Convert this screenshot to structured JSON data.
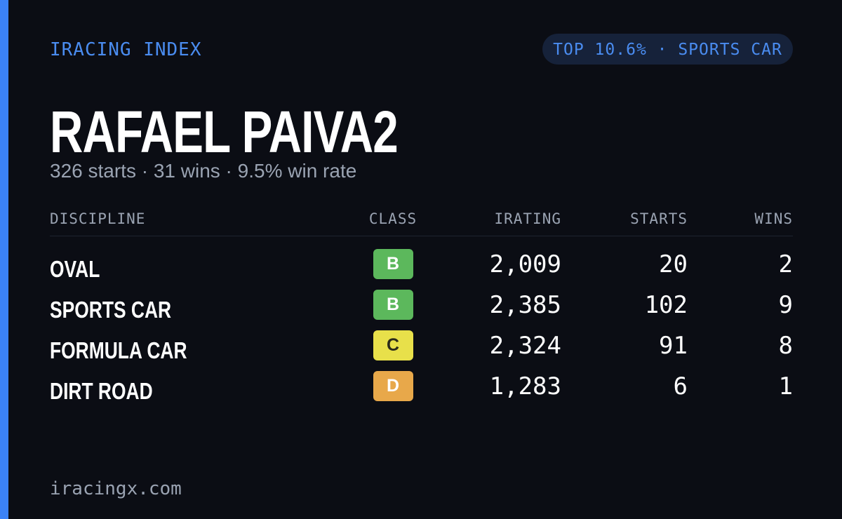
{
  "header": {
    "label": "IRACING INDEX",
    "badge": "TOP 10.6% · SPORTS CAR"
  },
  "name": "RAFAEL PAIVA2",
  "summary": "326 starts · 31 wins · 9.5% win rate",
  "table": {
    "columns": [
      "DISCIPLINE",
      "CLASS",
      "IRATING",
      "STARTS",
      "WINS"
    ],
    "rows": [
      [
        "OVAL",
        "B",
        "2,009",
        "20",
        "2"
      ],
      [
        "SPORTS CAR",
        "B",
        "2,385",
        "102",
        "9"
      ],
      [
        "FORMULA CAR",
        "C",
        "2,324",
        "91",
        "8"
      ],
      [
        "DIRT ROAD",
        "D",
        "1,283",
        "6",
        "1"
      ]
    ]
  },
  "footer": "iracingx.com"
}
